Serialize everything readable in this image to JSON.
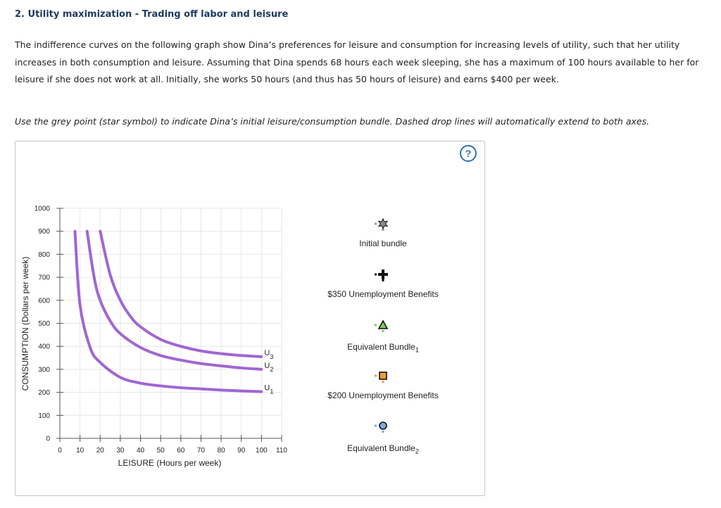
{
  "header": {
    "title": "2. Utility maximization - Trading off labor and leisure"
  },
  "intro": {
    "paragraph": "The indifference curves on the following graph show Dina’s preferences for leisure and consumption for increasing levels of utility, such that her utility increases in both consumption and leisure. Assuming that Dina spends 68 hours each week sleeping, she has a maximum of 100 hours available to her for leisure if she does not work at all. Initially, she works 50 hours (and thus has 50 hours of leisure) and earns $400 per week.",
    "instruction": "Use the grey point (star symbol) to indicate Dina’s initial leisure/consumption bundle. Dashed drop lines will automatically extend to both axes."
  },
  "help": {
    "label": "?"
  },
  "chart_data": {
    "type": "line",
    "xlabel": "LEISURE (Hours per week)",
    "ylabel": "CONSUMPTION (Dollars per week)",
    "xlim": [
      0,
      110
    ],
    "ylim": [
      0,
      1000
    ],
    "xticks": [
      "0",
      "10",
      "20",
      "30",
      "40",
      "50",
      "60",
      "70",
      "80",
      "90",
      "100",
      "110"
    ],
    "yticks": [
      "0",
      "100",
      "200",
      "300",
      "400",
      "500",
      "600",
      "700",
      "800",
      "900",
      "1000"
    ],
    "grid": true,
    "series": [
      {
        "name": "U",
        "sub": "1",
        "x": [
          7.5,
          10,
          15,
          20,
          30,
          40,
          50,
          60,
          70,
          80,
          90,
          100
        ],
        "y": [
          900,
          580,
          395,
          330,
          265,
          240,
          228,
          220,
          215,
          210,
          206,
          203
        ],
        "color": "#a066d3"
      },
      {
        "name": "U",
        "sub": "2",
        "x": [
          13.5,
          17,
          20,
          25,
          30,
          40,
          50,
          60,
          70,
          80,
          90,
          100
        ],
        "y": [
          900,
          700,
          600,
          510,
          455,
          395,
          360,
          340,
          325,
          315,
          306,
          300
        ],
        "color": "#a066d3"
      },
      {
        "name": "U",
        "sub": "3",
        "x": [
          20,
          25,
          30,
          35,
          40,
          50,
          60,
          70,
          80,
          90,
          100
        ],
        "y": [
          900,
          710,
          600,
          530,
          485,
          430,
          400,
          380,
          368,
          360,
          355
        ],
        "color": "#a066d3"
      }
    ]
  },
  "legend": [
    {
      "label": "Initial bundle",
      "sub": "",
      "symbol": "star",
      "color": "#8c8c8c",
      "tag_color": "#9a9a9a"
    },
    {
      "label": "$350 Unemployment Benefits",
      "sub": "",
      "symbol": "plus",
      "color": "#111111",
      "tag_color": "#111111"
    },
    {
      "label": "Equivalent Bundle",
      "sub": "1",
      "symbol": "triangle",
      "color": "#7ecb5b",
      "tag_color": "#7ecb5b"
    },
    {
      "label": "$200 Unemployment Benefits",
      "sub": "",
      "symbol": "square",
      "color": "#f29b38",
      "tag_color": "#f29b38"
    },
    {
      "label": "Equivalent Bundle",
      "sub": "2",
      "symbol": "circle",
      "color": "#7aa8de",
      "tag_color": "#7aa8de"
    }
  ]
}
